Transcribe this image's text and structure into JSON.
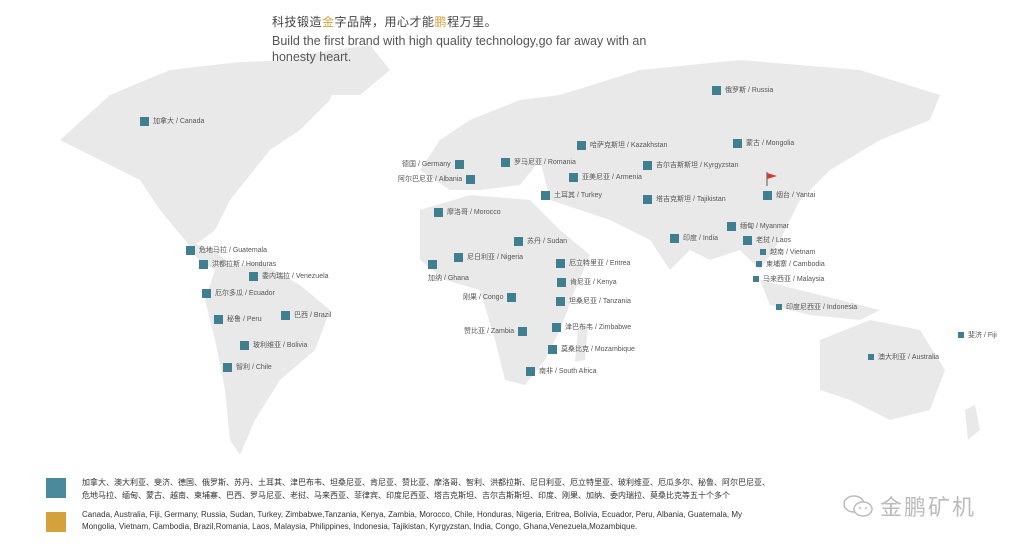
{
  "header": {
    "slogan_cn_part1": "科技锻造",
    "slogan_cn_gold1": "金",
    "slogan_cn_part2": "字品牌，用心才能",
    "slogan_cn_gold2": "鹏",
    "slogan_cn_part3": "程万里。",
    "slogan_en": "Build the first brand with high quality technology,go far away with an honesty heart."
  },
  "colors": {
    "marker": "#3f7f8f",
    "legend_teal": "#4a8a9a",
    "legend_gold": "#d4a23c",
    "flag": "#d83a2e",
    "land": "#e9e9e9"
  },
  "markers": [
    {
      "label": "加拿大 / Canada"
    },
    {
      "label": "俄罗斯 / Russia"
    },
    {
      "label": "蒙古 / Mongolia"
    },
    {
      "label": "哈萨克斯坦 / Kazakhstan"
    },
    {
      "label": "德国 / Germany"
    },
    {
      "label": "罗马尼亚 / Romania"
    },
    {
      "label": "阿尔巴尼亚 / Albania"
    },
    {
      "label": "亚美尼亚 / Armenia"
    },
    {
      "label": "吉尔吉斯斯坦 / Kyrgyzstan"
    },
    {
      "label": "土耳其 / Turkey"
    },
    {
      "label": "塔吉克斯坦 / Tajikistan"
    },
    {
      "label": "烟台 / Yantai"
    },
    {
      "label": "摩洛哥 / Morocco"
    },
    {
      "label": "缅甸 / Myanmar"
    },
    {
      "label": "印度 / India"
    },
    {
      "label": "老挝 / Laos"
    },
    {
      "label": "越南 / Vietnam"
    },
    {
      "label": "柬埔寨 / Cambodia"
    },
    {
      "label": "马来西亚 / Malaysia"
    },
    {
      "label": "印度尼西亚 / Indonesia"
    },
    {
      "label": "斐济 / Fiji"
    },
    {
      "label": "澳大利亚 / Australia"
    },
    {
      "label": "苏丹 / Sudan"
    },
    {
      "label": "尼日利亚 / Nigeria"
    },
    {
      "label": "加纳 / Ghana"
    },
    {
      "label": "厄立特里亚 / Eritrea"
    },
    {
      "label": "肯尼亚 / Kenya"
    },
    {
      "label": "坦桑尼亚 / Tanzania"
    },
    {
      "label": "刚果 / Congo"
    },
    {
      "label": "赞比亚 / Zambia"
    },
    {
      "label": "津巴布韦 / Zimbabwe"
    },
    {
      "label": "莫桑比克 / Mozambique"
    },
    {
      "label": "南非 / South Africa"
    },
    {
      "label": "危地马拉 / Guatemala"
    },
    {
      "label": "洪都拉斯 / Honduras"
    },
    {
      "label": "委内瑞拉 / Venezuela"
    },
    {
      "label": "厄尔多瓜 / Ecuador"
    },
    {
      "label": "秘鲁 / Peru"
    },
    {
      "label": "巴西 / Brazil"
    },
    {
      "label": "玻利维亚 / Bolivia"
    },
    {
      "label": "智利 / Chile"
    }
  ],
  "legend": {
    "cn_line1": "加拿大、澳大利亚、斐济、德国、俄罗斯、苏丹、土耳其、津巴布韦、坦桑尼亚、肯尼亚、赞比亚、摩洛哥、智利、洪都拉斯、尼日利亚、厄立特里亚、玻利维亚、厄瓜多尔、秘鲁、阿尔巴尼亚、",
    "cn_line2": "危地马拉、缅甸、蒙古、越南、柬埔寨、巴西、罗马尼亚、老挝、马来西亚、菲律宾、印度尼西亚、塔吉克斯坦、吉尔吉斯斯坦、印度、刚果、加纳、委内瑞拉、莫桑比克等五十个多个",
    "en_line1": "Canada, Australia, Fiji, Germany, Russia, Sudan, Turkey, Zimbabwe,Tanzania, Kenya, Zambia, Morocco, Chile, Honduras, Nigeria, Eritrea, Bolivia, Ecuador, Peru, Albania, Guatemala, My",
    "en_line2": "Mongolia, Vietnam, Cambodia, Brazil,Romania, Laos, Malaysia, Philippines, Indonesia, Tajikistan, Kyrgyzstan, India, Congo, Ghana,Venezuela,Mozambique."
  },
  "watermark": {
    "text": "金鹏矿机",
    "icon": "wechat-icon"
  }
}
